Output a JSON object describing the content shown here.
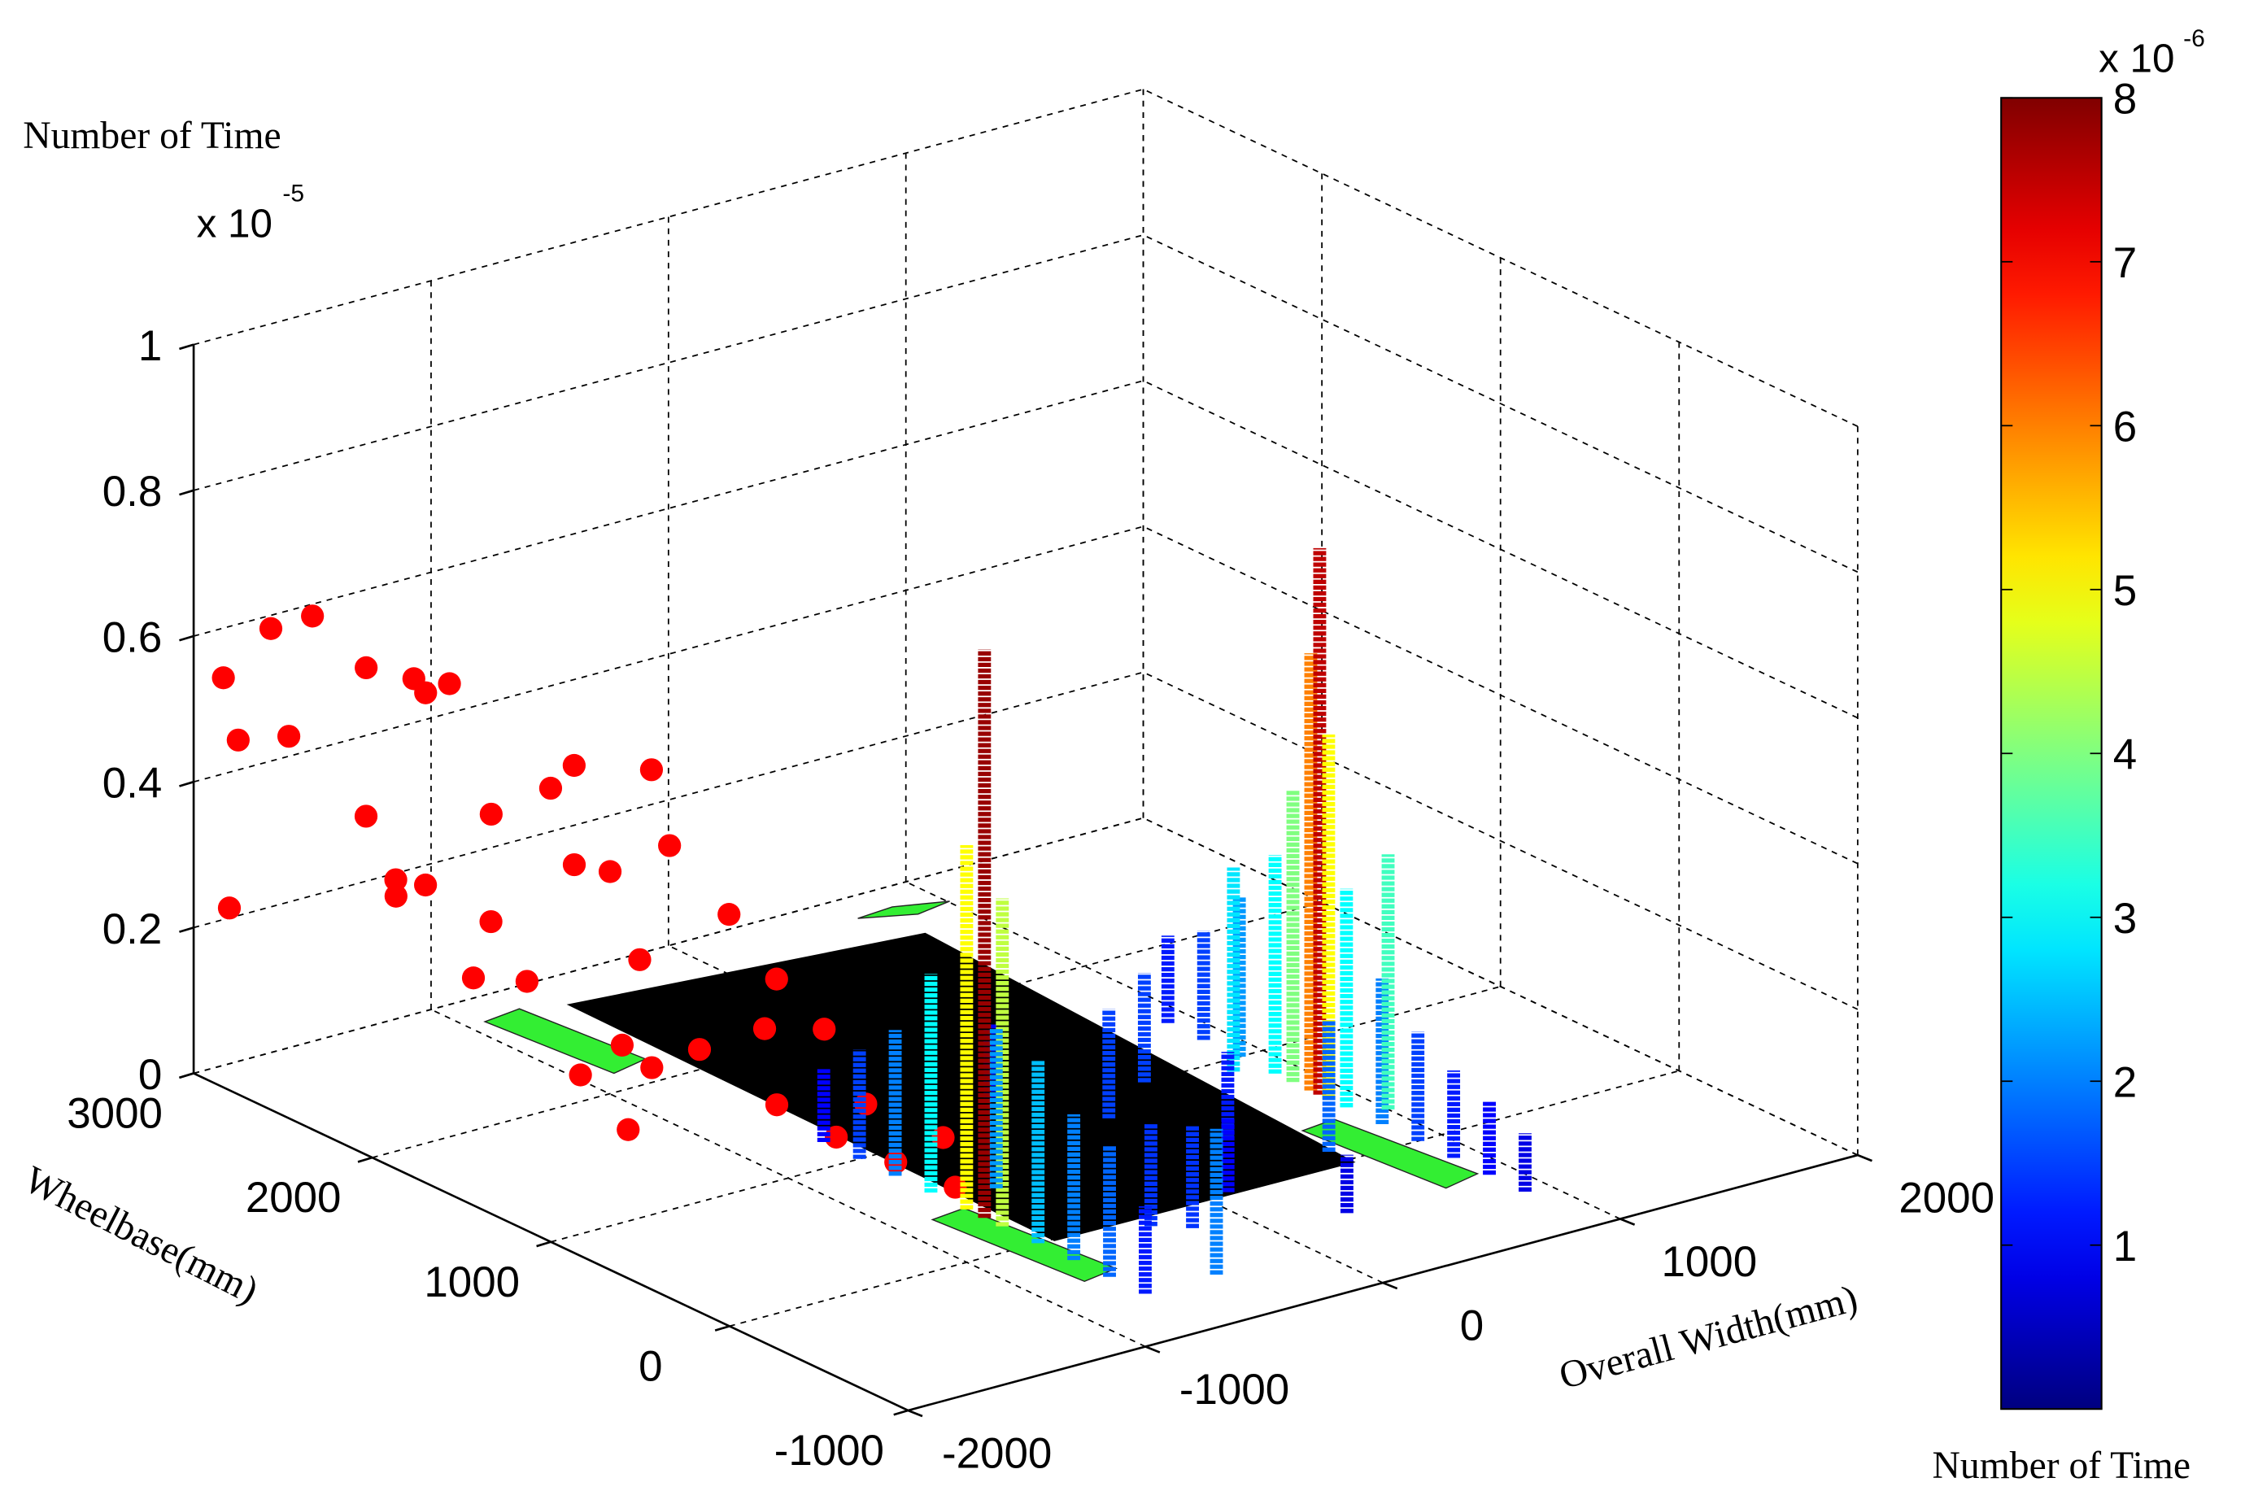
{
  "chart_data": {
    "type": "surface3d",
    "zlabel": "Number of Time",
    "z_exponent": "x 10",
    "z_exponent_power": "-5",
    "ylabel": "Wheelbase(mm)",
    "xlabel": "Overall Width(mm)",
    "xlim": [
      -2000,
      2000
    ],
    "xticks": [
      -2000,
      -1000,
      0,
      1000,
      2000
    ],
    "ylim": [
      -1000,
      3000
    ],
    "yticks": [
      -1000,
      0,
      1000,
      2000,
      3000
    ],
    "zlim": [
      0,
      1
    ],
    "zticks": [
      0,
      0.2,
      0.4,
      0.6,
      0.8,
      1
    ],
    "grid": true,
    "colormap": "jet",
    "colorbar": {
      "label": "Number of Time",
      "exponent": "x 10",
      "exponent_power": "-6",
      "lim": [
        0,
        8
      ],
      "ticks": [
        1,
        2,
        3,
        4,
        5,
        6,
        7,
        8
      ]
    },
    "scatter": {
      "color": "#ff0000",
      "x": [
        -2000,
        -1750,
        -1650,
        -1950,
        -1900,
        -1850,
        -1800,
        -1700,
        -1650,
        -1600,
        -1550,
        -1950,
        -1500,
        -1900,
        -1300,
        -1800,
        -1700,
        -1200,
        -1450,
        -1950,
        -1600,
        -1900,
        -1400,
        -1500,
        -1800,
        -1650,
        -1850,
        -1400,
        -1250,
        -1750,
        -1350,
        -1900,
        -1300,
        -1650,
        -1200,
        -1550,
        -1100,
        -1450,
        -1350,
        -1750
      ],
      "y": [
        2800,
        2900,
        2800,
        2900,
        2600,
        2950,
        2300,
        2100,
        2500,
        2400,
        2300,
        1500,
        2000,
        2000,
        1800,
        1600,
        1400,
        1500,
        1600,
        1200,
        1200,
        1900,
        1300,
        1000,
        1100,
        900,
        800,
        800,
        800,
        500,
        600,
        700,
        400,
        200,
        300,
        0,
        0,
        -200,
        -400,
        1900
      ],
      "z": [
        0.25,
        0.6,
        0.62,
        0.55,
        0.5,
        0.45,
        0.62,
        0.6,
        0.38,
        0.3,
        0.3,
        0.3,
        0.28,
        0.35,
        0.5,
        0.5,
        0.55,
        0.52,
        0.4,
        0.33,
        0.45,
        0.66,
        0.3,
        0.5,
        0.2,
        0.22,
        0.28,
        0.42,
        0.25,
        0.3,
        0.35,
        0.18,
        0.3,
        0.25,
        0.2,
        0.22,
        0.18,
        0.2,
        0.18,
        0.64
      ]
    },
    "surface": {
      "x": [
        900,
        0,
        900,
        500,
        -700,
        900,
        800,
        -700,
        900,
        -700,
        900,
        900,
        200,
        900,
        -700,
        -300,
        -700,
        900,
        400,
        -700,
        900,
        -700,
        100,
        900,
        -200,
        -700,
        900,
        -700,
        300,
        900,
        -700,
        -400,
        900,
        -700,
        900,
        1000,
        600,
        -500
      ],
      "y": [
        1400,
        1200,
        1200,
        1000,
        1200,
        1000,
        900,
        1000,
        800,
        800,
        700,
        600,
        800,
        550,
        600,
        -100,
        400,
        500,
        400,
        300,
        400,
        200,
        0,
        200,
        -200,
        0,
        0,
        -200,
        -400,
        -200,
        -400,
        -600,
        -400,
        -600,
        -600,
        300,
        100,
        500
      ],
      "z": [
        0.12,
        0.1,
        0.15,
        0.15,
        0.1,
        0.22,
        0.28,
        0.15,
        0.3,
        0.2,
        0.4,
        0.6,
        0.15,
        0.75,
        0.3,
        0.14,
        0.5,
        0.5,
        0.12,
        0.78,
        0.3,
        0.45,
        0.1,
        0.2,
        0.14,
        0.25,
        0.15,
        0.2,
        0.08,
        0.12,
        0.18,
        0.2,
        0.1,
        0.12,
        0.08,
        0.35,
        0.18,
        0.22
      ]
    }
  }
}
